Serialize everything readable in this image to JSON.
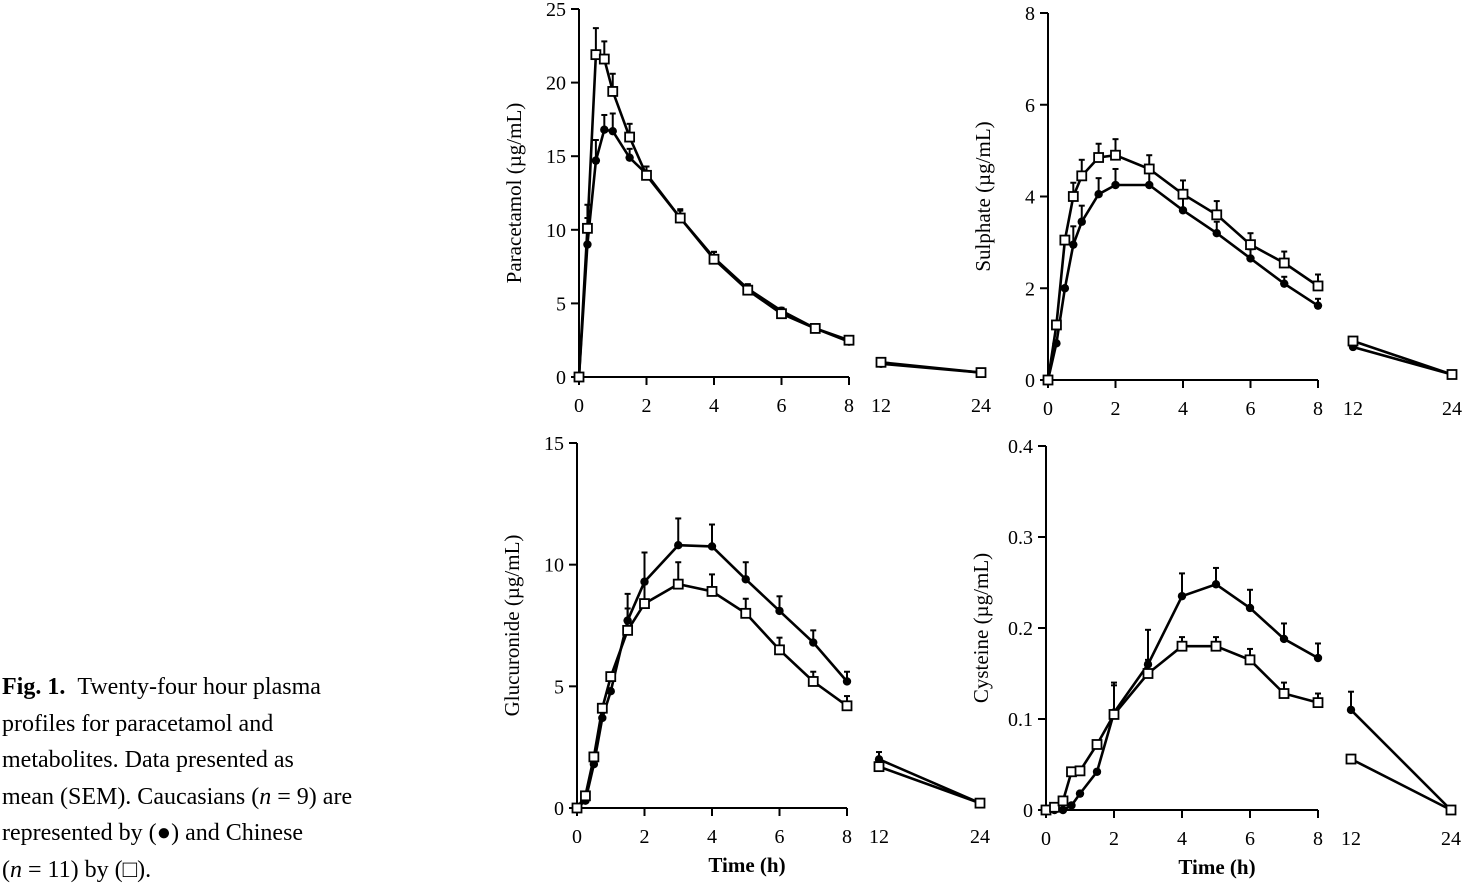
{
  "caption": {
    "label": "Fig. 1.",
    "line1": "Twenty-four hour plasma",
    "line2": "profiles for paracetamol and",
    "line3": "metabolites. Data presented as",
    "line4_a": "mean (SEM). Caucasians (",
    "line4_n": "n",
    "line4_b": " = 9) are",
    "line5_a": "represented by (",
    "symbol_filled": "●",
    "line5_b": ") and Chinese",
    "line6_a": "(",
    "line6_n": "n",
    "line6_b": " = 11) by (",
    "symbol_open": "□",
    "line6_c": ")."
  },
  "series_styles": {
    "caucasians": {
      "marker": "filled-circle",
      "color": "#000000"
    },
    "chinese": {
      "marker": "open-square",
      "color": "#000000"
    }
  },
  "chart_data": [
    {
      "type": "line",
      "ylabel": "Paracetamol (µg/mL)",
      "xlabel": "",
      "ylim": [
        0,
        25
      ],
      "yticks": [
        0,
        5,
        10,
        15,
        20,
        25
      ],
      "xticks_main": [
        0,
        2,
        4,
        6,
        8
      ],
      "xticks_late": [
        12,
        24
      ],
      "series": [
        {
          "key": "caucasians",
          "points": [
            [
              0,
              0
            ],
            [
              0.25,
              9
            ],
            [
              0.5,
              14.7
            ],
            [
              0.75,
              16.8
            ],
            [
              1,
              16.7
            ],
            [
              1.5,
              14.9
            ],
            [
              2,
              13.8
            ],
            [
              3,
              10.8
            ],
            [
              4,
              8.1
            ],
            [
              5,
              6.0
            ],
            [
              6,
              4.5
            ],
            [
              7,
              3.3
            ],
            [
              8,
              2.4
            ],
            [
              12,
              0.9
            ],
            [
              24,
              0.3
            ]
          ],
          "errors": [
            0,
            1.8,
            1.4,
            1.0,
            1.2,
            0.6,
            0.5,
            0.5,
            0.4,
            0.3,
            0.2,
            0.2,
            0.1,
            0,
            0
          ]
        },
        {
          "key": "chinese",
          "points": [
            [
              0,
              0
            ],
            [
              0.25,
              10.1
            ],
            [
              0.5,
              21.9
            ],
            [
              0.75,
              21.6
            ],
            [
              1,
              19.4
            ],
            [
              1.5,
              16.3
            ],
            [
              2,
              13.7
            ],
            [
              3,
              10.8
            ],
            [
              4,
              8.0
            ],
            [
              5,
              5.9
            ],
            [
              6,
              4.3
            ],
            [
              7,
              3.3
            ],
            [
              8,
              2.5
            ],
            [
              12,
              1.0
            ],
            [
              24,
              0.3
            ]
          ],
          "errors": [
            0,
            1.6,
            1.8,
            1.2,
            1.2,
            0.9,
            0.6,
            0.6,
            0.5,
            0.4,
            0.2,
            0.2,
            0.1,
            0,
            0
          ]
        }
      ]
    },
    {
      "type": "line",
      "ylabel": "Sulphate (µg/mL)",
      "xlabel": "",
      "ylim": [
        0,
        8
      ],
      "yticks": [
        0,
        2,
        4,
        6,
        8
      ],
      "xticks_main": [
        0,
        2,
        4,
        6,
        8
      ],
      "xticks_late": [
        12,
        24
      ],
      "series": [
        {
          "key": "caucasians",
          "points": [
            [
              0,
              0
            ],
            [
              0.25,
              0.8
            ],
            [
              0.5,
              2.0
            ],
            [
              0.75,
              2.95
            ],
            [
              1,
              3.45
            ],
            [
              1.5,
              4.05
            ],
            [
              2,
              4.25
            ],
            [
              3,
              4.25
            ],
            [
              4,
              3.7
            ],
            [
              5,
              3.2
            ],
            [
              6,
              2.65
            ],
            [
              7,
              2.1
            ],
            [
              8,
              1.62
            ],
            [
              12,
              0.72
            ],
            [
              24,
              0.12
            ]
          ],
          "errors": [
            0,
            0,
            0,
            0.4,
            0.35,
            0.35,
            0.35,
            0.35,
            0.3,
            0.25,
            0.2,
            0.15,
            0.15,
            0,
            0
          ]
        },
        {
          "key": "chinese",
          "points": [
            [
              0,
              0
            ],
            [
              0.25,
              1.2
            ],
            [
              0.5,
              3.05
            ],
            [
              0.75,
              4.0
            ],
            [
              1,
              4.45
            ],
            [
              1.5,
              4.85
            ],
            [
              2,
              4.9
            ],
            [
              3,
              4.6
            ],
            [
              4,
              4.05
            ],
            [
              5,
              3.6
            ],
            [
              6,
              2.95
            ],
            [
              7,
              2.55
            ],
            [
              8,
              2.05
            ],
            [
              12,
              0.85
            ],
            [
              24,
              0.12
            ]
          ],
          "errors": [
            0,
            0,
            0,
            0.3,
            0.35,
            0.3,
            0.35,
            0.3,
            0.3,
            0.3,
            0.25,
            0.25,
            0.25,
            0,
            0
          ]
        }
      ]
    },
    {
      "type": "line",
      "ylabel": "Glucuronide (µg/mL)",
      "xlabel": "Time (h)",
      "ylim": [
        0,
        15
      ],
      "yticks": [
        0,
        5,
        10,
        15
      ],
      "xticks_main": [
        0,
        2,
        4,
        6,
        8
      ],
      "xticks_late": [
        12,
        24
      ],
      "series": [
        {
          "key": "caucasians",
          "points": [
            [
              0,
              0
            ],
            [
              0.25,
              0.3
            ],
            [
              0.5,
              1.8
            ],
            [
              0.75,
              3.7
            ],
            [
              1,
              4.8
            ],
            [
              1.5,
              7.7
            ],
            [
              2,
              9.3
            ],
            [
              3,
              10.8
            ],
            [
              4,
              10.75
            ],
            [
              5,
              9.4
            ],
            [
              6,
              8.1
            ],
            [
              7,
              6.8
            ],
            [
              8,
              5.2
            ],
            [
              12,
              2.0
            ],
            [
              24,
              0.2
            ]
          ],
          "errors": [
            0,
            0,
            0,
            0,
            0,
            1.1,
            1.2,
            1.1,
            0.9,
            0.7,
            0.6,
            0.5,
            0.4,
            0.3,
            0
          ]
        },
        {
          "key": "chinese",
          "points": [
            [
              0,
              0
            ],
            [
              0.25,
              0.5
            ],
            [
              0.5,
              2.1
            ],
            [
              0.75,
              4.1
            ],
            [
              1,
              5.4
            ],
            [
              1.5,
              7.3
            ],
            [
              2,
              8.4
            ],
            [
              3,
              9.2
            ],
            [
              4,
              8.9
            ],
            [
              5,
              8.0
            ],
            [
              6,
              6.5
            ],
            [
              7,
              5.2
            ],
            [
              8,
              4.2
            ],
            [
              12,
              1.7
            ],
            [
              24,
              0.2
            ]
          ],
          "errors": [
            0,
            0,
            0,
            0,
            0,
            0.9,
            0.8,
            0.9,
            0.7,
            0.6,
            0.5,
            0.4,
            0.4,
            0.3,
            0
          ]
        }
      ]
    },
    {
      "type": "line",
      "ylabel": "Cysteine (µg/mL)",
      "xlabel": "Time (h)",
      "ylim": [
        0,
        0.4
      ],
      "yticks": [
        0,
        0.1,
        0.2,
        0.3,
        0.4
      ],
      "xticks_main": [
        0,
        2,
        4,
        6,
        8
      ],
      "xticks_late": [
        12,
        24
      ],
      "series": [
        {
          "key": "caucasians",
          "points": [
            [
              0,
              0
            ],
            [
              0.25,
              0
            ],
            [
              0.5,
              0
            ],
            [
              0.75,
              0.005
            ],
            [
              1,
              0.018
            ],
            [
              1.5,
              0.042
            ],
            [
              2,
              0.107
            ],
            [
              3,
              0.16
            ],
            [
              4,
              0.235
            ],
            [
              5,
              0.248
            ],
            [
              6,
              0.222
            ],
            [
              7,
              0.188
            ],
            [
              8,
              0.167
            ],
            [
              12,
              0.11
            ],
            [
              24,
              0
            ]
          ],
          "errors": [
            0,
            0,
            0,
            0,
            0,
            0,
            0.03,
            0.038,
            0.025,
            0.018,
            0.02,
            0.017,
            0.016,
            0.02,
            0
          ]
        },
        {
          "key": "chinese",
          "points": [
            [
              0,
              0
            ],
            [
              0.25,
              0.003
            ],
            [
              0.5,
              0.01
            ],
            [
              0.75,
              0.042
            ],
            [
              1,
              0.043
            ],
            [
              1.5,
              0.072
            ],
            [
              2,
              0.105
            ],
            [
              3,
              0.15
            ],
            [
              4,
              0.18
            ],
            [
              5,
              0.18
            ],
            [
              6,
              0.165
            ],
            [
              7,
              0.128
            ],
            [
              8,
              0.118
            ],
            [
              12,
              0.056
            ],
            [
              24,
              0
            ]
          ],
          "errors": [
            0,
            0,
            0,
            0,
            0,
            0,
            0.035,
            0.015,
            0.01,
            0.01,
            0.012,
            0.012,
            0.01,
            0,
            0
          ]
        }
      ]
    }
  ]
}
